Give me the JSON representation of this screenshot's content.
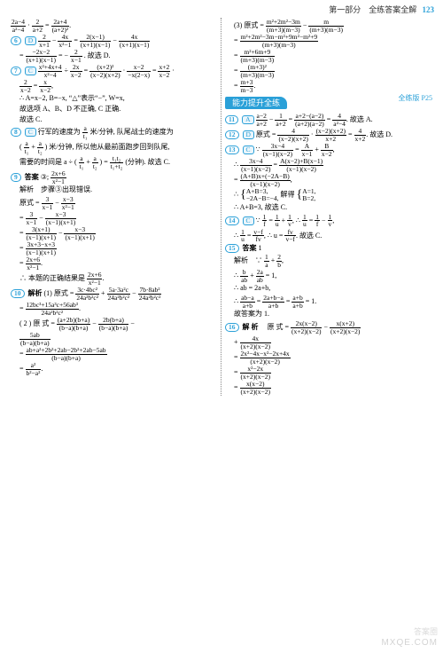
{
  "header": {
    "part": "第一部分　全练答案全解",
    "page": "123"
  },
  "left": {
    "pre6": "　(2a−4)/(a²−4) · 2/(a+2) = (2a+4)/((a+2)²).",
    "q6": {
      "num": "6",
      "ans": "D",
      "l1": "2/(x+1) − 4x/(x²−1) = 2(x−1)/((x+1)(x−1)) − 4x/((x+1)(x−1))",
      "l2": "= (−2x−2)/((x+1)(x−1)) = −2/(x−1) . 故选 D."
    },
    "q7": {
      "num": "7",
      "ans": "C",
      "l1": "(x²+4x+4)/(x²−4) ÷ 2x/(x−2) = ((x+2)²)/((x−2)(x+2)) · (x−2)/(−x(2−x)) = (x+2)/(x−2) ·",
      "l2": "2/(x−2) = x/(x−2),",
      "l3": "∴ A=x−2, B=−x, “△”表示“−”, W=x,",
      "l4": "故选项 A、B、D 不正确, C 正确.",
      "l5": "故选 C."
    },
    "q8": {
      "num": "8",
      "ans": "C",
      "l1": "行军的速度为 a/t₁ 米/分钟, 队尾战士的速度为",
      "l2": "( a/t₁ + a/t₂ ) 米/分钟, 所以他从最前面跑步回到队尾,",
      "l3": "需要的时间是 a ÷ ( a/t₁ + a/t₂ ) = t₁t₂/(t₁+t₂) (分钟). 故选 C."
    },
    "q9": {
      "num": "9",
      "ansLabel": "答案",
      "ansText": "③; (2x+6)/(x²−1)",
      "l1": "解析　步骤③出现错误.",
      "l2": "原式 = 3/(x−1) − (x−3)/(x²−1)",
      "l3": "= 3/(x−1) − (x−3)/((x−1)(x+1))",
      "l4": "= 3(x+1)/((x−1)(x+1)) − (x−3)/((x−1)(x+1))",
      "l5": "= (3x+3−x+3)/((x−1)(x+1))",
      "l6": "= (2x+6)/(x²−1).",
      "l7": "∴ 本题的正确结果是 (2x+6)/(x²−1)."
    },
    "q10": {
      "num": "10",
      "label": "解析",
      "l1": "(1) 原式 = (3c·4bc²)/(24a²b²c²) + (5a·3a²c)/(24a²b²c²) − (7b·8ab²)/(24a²b²c²)",
      "l2": "= (12bc³+15a³c+56ab³)/(24a²b²c²).",
      "l3": "(2) 原 式 = ((a+2b)(b+a))/((b−a)(b+a)) − 2b(b+a)/((b−a)(b+a)) −",
      "l4": "5ab/((b−a)(b+a))",
      "l5": "= (ab+a²+2b²+2ab−2b²+2ab−5ab)/((b−a)(b+a))",
      "l6": "= a²/(b²−a²)."
    }
  },
  "right": {
    "q10c": {
      "l1": "(3) 原式 = (m²+2m²−3m)/((m+3)(m−3)) − m/((m+3)(m−3))",
      "l2": "= (m²+2m²−3m−m²+9m²−m²+9)/((m+3)(m−3))",
      "l3": "= (m²+6m+9)/((m+3)(m−3))",
      "l4": "= ((m+3)²)/((m+3)(m−3))",
      "l5": "= (m+3)/(m−3)."
    },
    "section": {
      "title": "能力提升全练",
      "ref": "全练版 P25"
    },
    "q11": {
      "num": "11",
      "ans": "A",
      "l1": "(a−2)/(a+2) − 1/(a+2) = (a+2−(a−2))/((a+2)(a−2)) = 4/(a²−4). 故选 A."
    },
    "q12": {
      "num": "12",
      "ans": "D",
      "l1": "原式 = 4/((x−2)(x+2)) · ((x−2)(x+2))/(x+2) = 4/(x+2). 故选 D."
    },
    "q13": {
      "num": "13",
      "ans": "C",
      "l1": "∵ (3x−4)/((x−1)(x−2)) = A/(x−1) + B/(x−2),",
      "l2": "∴ (3x−4)/((x−1)(x−2)) = (A(x−2)+B(x−1))/((x−1)(x−2))",
      "l3": "= ((A+B)x+(−2A−B))/((x−1)(x−2)),",
      "l4a": "A+B=3,",
      "l4b": "−2A−B=−4,",
      "l4mid": "解得",
      "l4c": "A=1,",
      "l4d": "B=2,",
      "l5": "∴ A+B=3, 故选 C."
    },
    "q14": {
      "num": "14",
      "ans": "C",
      "l1": "∵ 1/f = 1/u + 1/v, ∴ 1/u = 1/f − 1/v,",
      "l2": "∴ 1/u = (v−f)/(fv), ∴ u = fv/(v−f). 故选 C."
    },
    "q15": {
      "num": "15",
      "ansLabel": "答案",
      "ansText": "1",
      "l1": "解析　∵ 1/a + 2/b,",
      "l2": "∴ b/ab + 2a/ab = 1,",
      "l3": "∴ ab = 2a+b,",
      "l4": "∴ (ab−a)/(a+b) = (2a+b−a)/(a+b) = (a+b)/(a+b) = 1.",
      "l5": "故答案为 1."
    },
    "q16": {
      "num": "16",
      "label": "解 析",
      "l1": "原 式 = 2x(x−2)/((x+2)(x−2)) − x(x+2)/((x+2)(x−2))",
      "l2": "+ 4x/((x+2)(x−2))",
      "l3": "= (2x²−4x−x²−2x+4x)/((x+2)(x−2))",
      "l4": "= (x²−2x)/((x+2)(x−2))",
      "l5": "= x(x−2)/((x+2)(x−2))"
    }
  }
}
